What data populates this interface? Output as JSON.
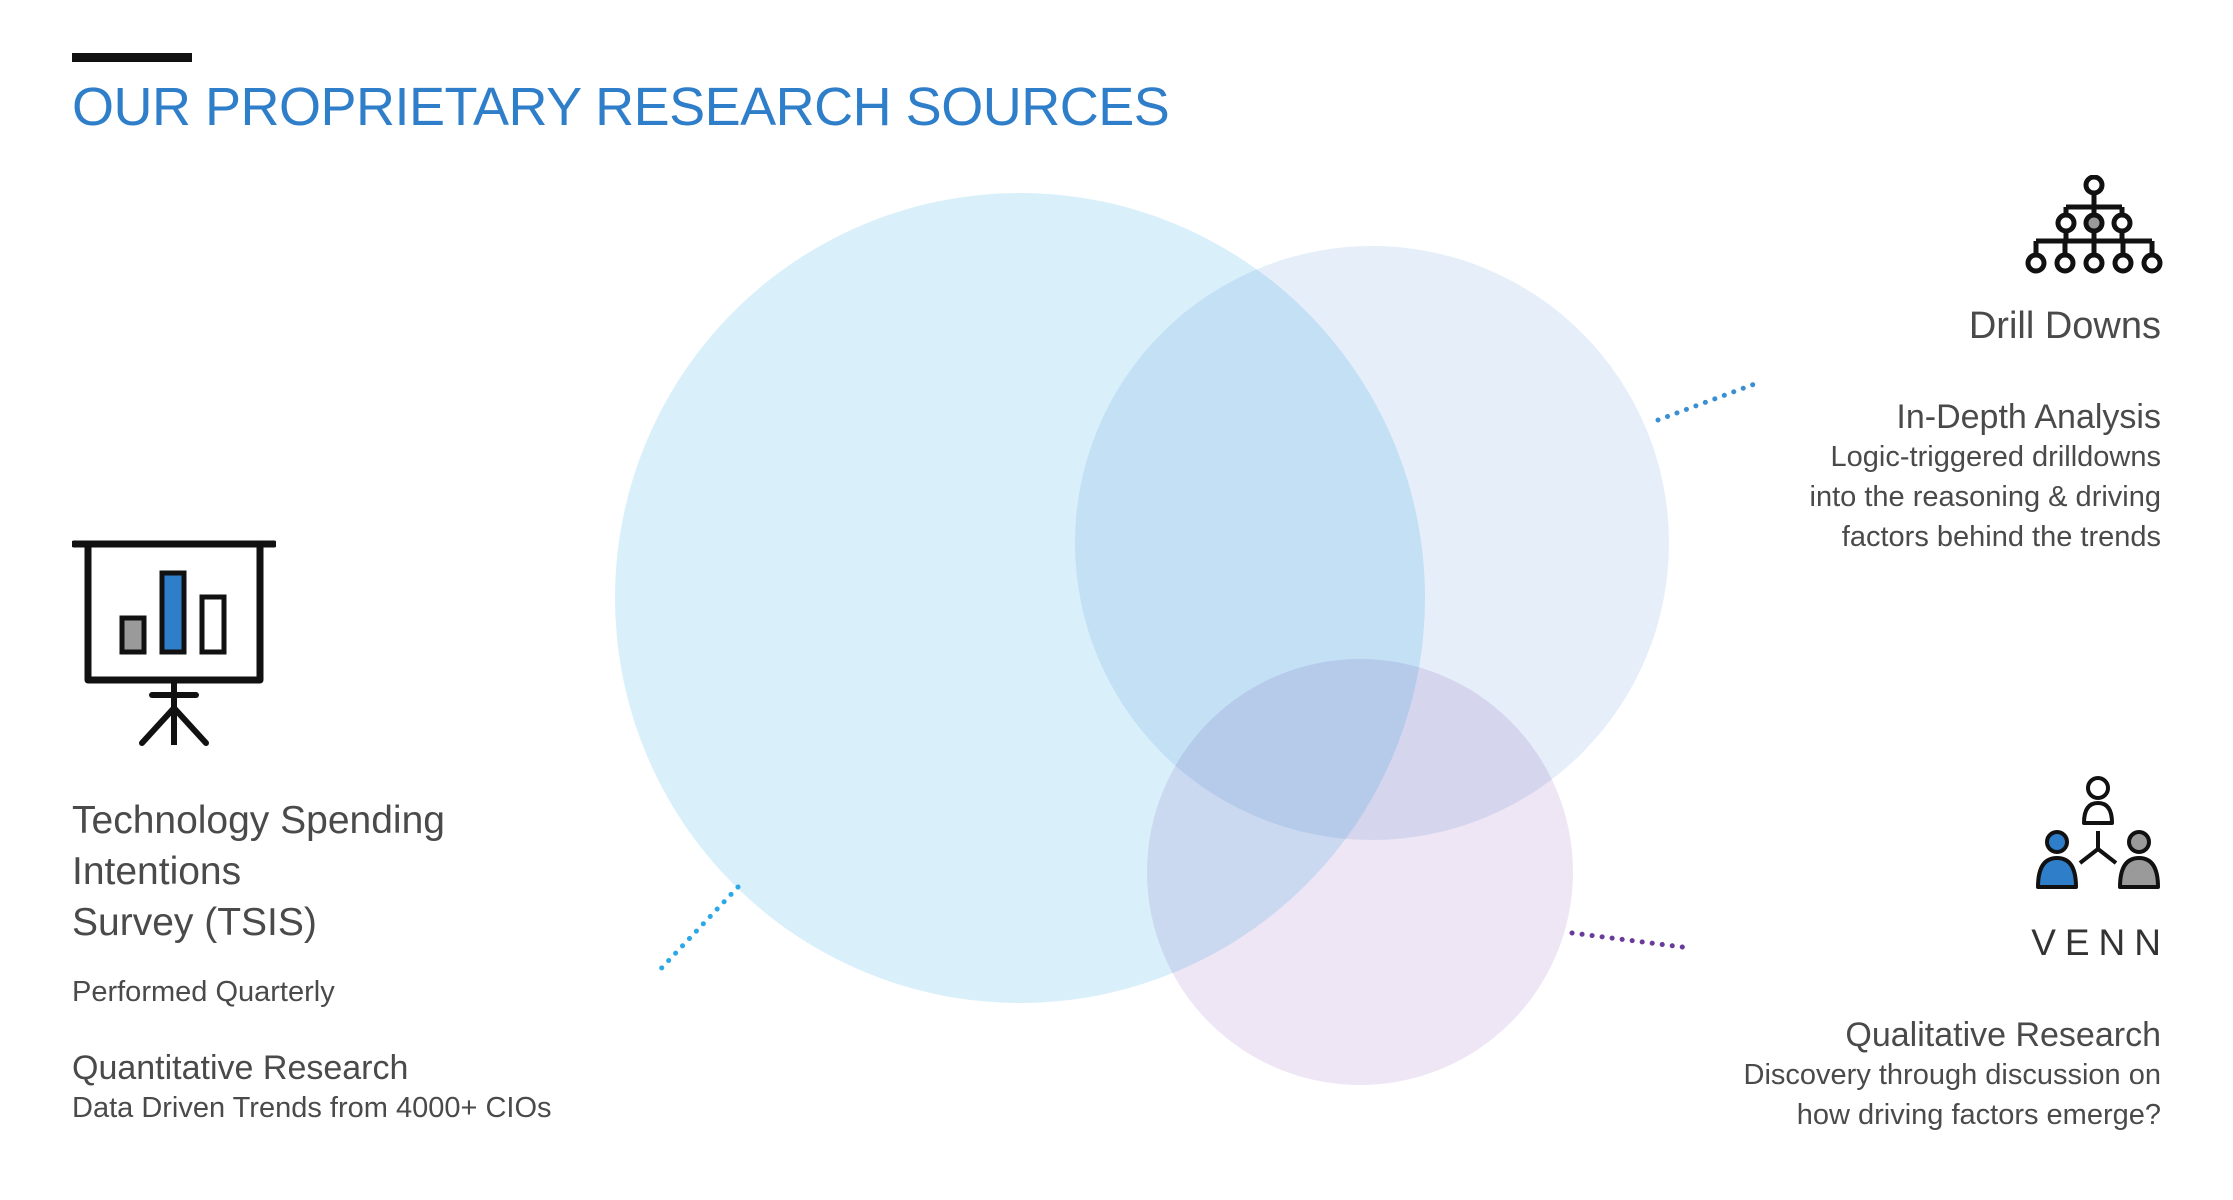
{
  "header": {
    "title": "OUR PROPRIETARY RESEARCH SOURCES"
  },
  "venn": {
    "circles": [
      {
        "name": "survey-circle",
        "color": "#d9f0fb"
      },
      {
        "name": "drilldown-circle",
        "color": "#dbe8f7"
      },
      {
        "name": "venn-circle",
        "color": "#e8dcf0"
      }
    ],
    "connectors": [
      {
        "name": "survey-connector",
        "color": "#2aa9e6"
      },
      {
        "name": "drilldown-connector",
        "color": "#3a8fd3"
      },
      {
        "name": "venn-connector",
        "color": "#6a3a9a"
      }
    ]
  },
  "tsis": {
    "icon": "presentation-chart-icon",
    "title_lines": [
      "Technology Spending",
      "Intentions",
      "Survey (TSIS)"
    ],
    "frequency": "Performed Quarterly",
    "research_type": "Quantitative Research",
    "description": "Data Driven Trends from 4000+ CIOs"
  },
  "drilldowns": {
    "icon": "hierarchy-icon",
    "label": "Drill Downs",
    "research_type": "In-Depth Analysis",
    "description_lines": [
      "Logic-triggered drilldowns",
      "into the reasoning & driving",
      "factors behind the trends"
    ]
  },
  "venn_source": {
    "icon": "people-network-icon",
    "label": "VENN",
    "research_type": "Qualitative Research",
    "description_lines": [
      "Discovery through discussion on",
      "how driving factors emerge?"
    ]
  },
  "colors": {
    "title": "#2f7ec9",
    "accent_blue": "#2f7ec9",
    "accent_gray": "#9a9a9a",
    "text": "#4a4a4a"
  }
}
